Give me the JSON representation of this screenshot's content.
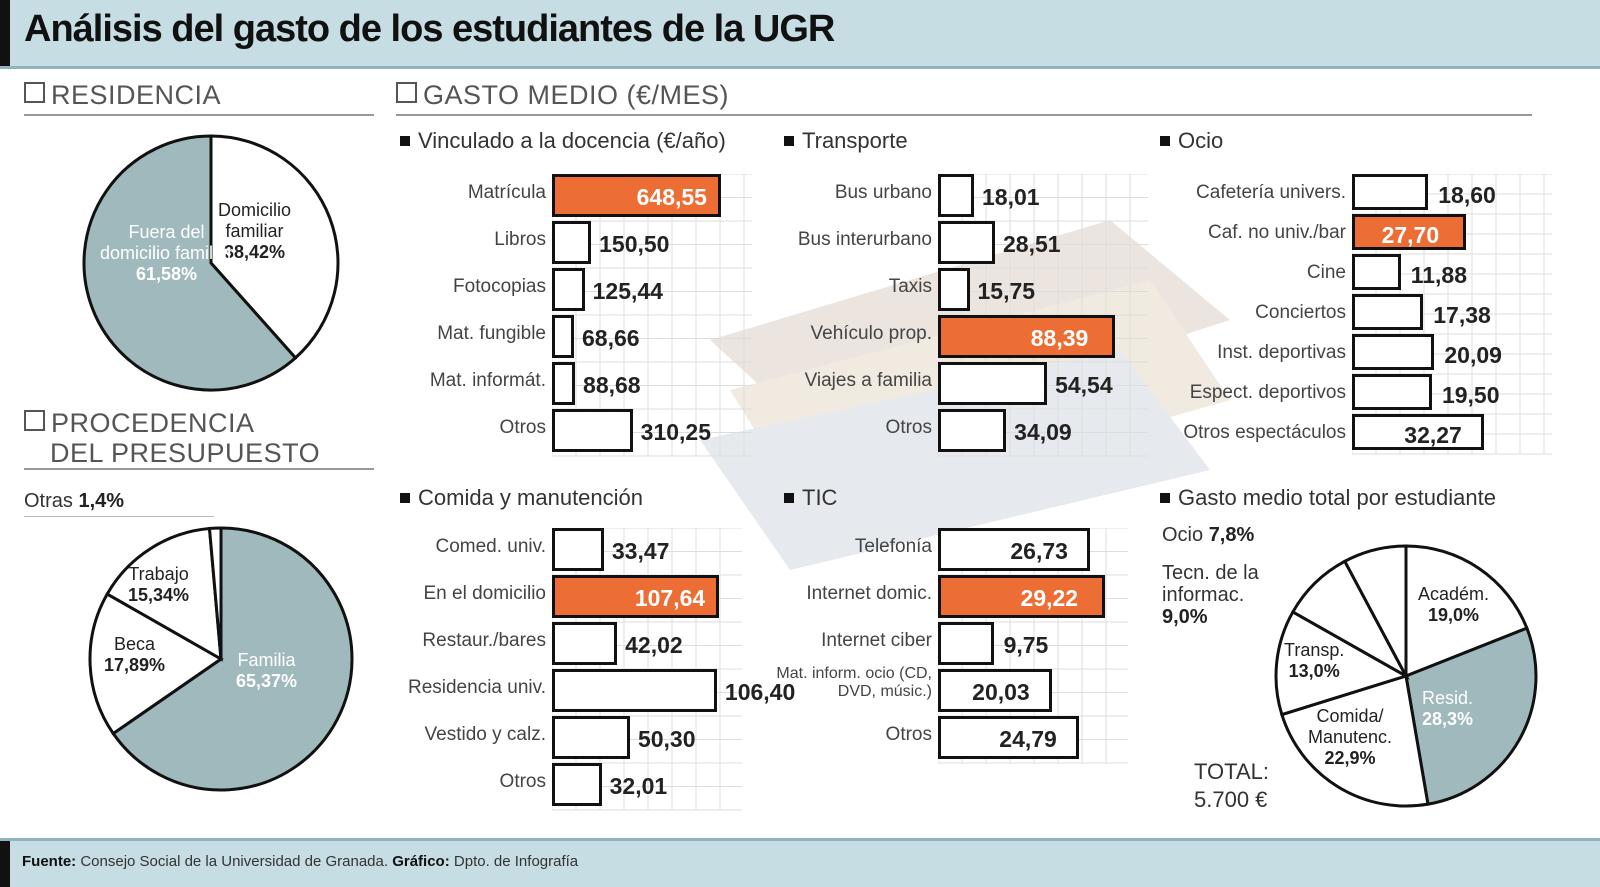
{
  "title": "Análisis del gasto de los estudiantes de la UGR",
  "sections": {
    "residencia": "RESIDENCIA",
    "procedencia_1": "PROCEDENCIA",
    "procedencia_2": "DEL PRESUPUESTO",
    "gasto_medio": "GASTO MEDIO (€/MES)"
  },
  "residencia_pie": {
    "slices": [
      {
        "label1": "Domicilio",
        "label2": "familiar",
        "value_text": "38,42%",
        "value": 38.42,
        "color": "#ffffff"
      },
      {
        "label1": "Fuera del",
        "label2": "domicilio familiar",
        "value_text": "61,58%",
        "value": 61.58,
        "color": "#9fb9bc"
      }
    ]
  },
  "procedencia_pie": {
    "otras_label": "Otras",
    "otras_value": "1,4%",
    "slices": [
      {
        "label1": "Familia",
        "value_text": "65,37%",
        "value": 65.37,
        "color": "#9fb9bc"
      },
      {
        "label1": "Beca",
        "value_text": "17,89%",
        "value": 17.89,
        "color": "#ffffff"
      },
      {
        "label1": "Trabajo",
        "value_text": "15,34%",
        "value": 15.34,
        "color": "#ffffff"
      },
      {
        "label1": "Otras",
        "value_text": "1,4%",
        "value": 1.4,
        "color": "#ffffff"
      }
    ]
  },
  "chart_data": [
    {
      "type": "bar",
      "title": "Vinculado a la docencia (€/año)",
      "categories": [
        "Matrícula",
        "Libros",
        "Fotocopias",
        "Mat. fungible",
        "Mat. informát.",
        "Otros"
      ],
      "values": [
        648.55,
        150.5,
        125.44,
        68.66,
        88.68,
        310.25
      ],
      "value_labels": [
        "648,55",
        "150,50",
        "125,44",
        "68,66",
        "88,68",
        "310,25"
      ],
      "highlight": [
        0
      ]
    },
    {
      "type": "bar",
      "title": "Transporte",
      "categories": [
        "Bus urbano",
        "Bus interurbano",
        "Taxis",
        "Vehículo prop.",
        "Viajes a familia",
        "Otros"
      ],
      "values": [
        18.01,
        28.51,
        15.75,
        88.39,
        54.54,
        34.09
      ],
      "value_labels": [
        "18,01",
        "28,51",
        "15,75",
        "88,39",
        "54,54",
        "34,09"
      ],
      "highlight": [
        3
      ]
    },
    {
      "type": "bar",
      "title": "Ocio",
      "categories": [
        "Cafetería univers.",
        "Caf. no univ./bar",
        "Cine",
        "Conciertos",
        "Inst. deportivas",
        "Espect. deportivos",
        "Otros espectáculos"
      ],
      "values": [
        18.6,
        27.7,
        11.88,
        17.38,
        20.09,
        19.5,
        32.27
      ],
      "value_labels": [
        "18,60",
        "27,70",
        "11,88",
        "17,38",
        "20,09",
        "19,50",
        "32,27"
      ],
      "highlight": [
        1
      ]
    },
    {
      "type": "bar",
      "title": "Comida y manutención",
      "categories": [
        "Comed. univ.",
        "En el domicilio",
        "Restaur./bares",
        "Residencia univ.",
        "Vestido y calz.",
        "Otros"
      ],
      "values": [
        33.47,
        107.64,
        42.02,
        106.4,
        50.3,
        32.01
      ],
      "value_labels": [
        "33,47",
        "107,64",
        "42,02",
        "106,40",
        "50,30",
        "32,01"
      ],
      "highlight": [
        1
      ]
    },
    {
      "type": "bar",
      "title": "TIC",
      "categories": [
        "Telefonía",
        "Internet domic.",
        "Internet ciber",
        "Mat. inform. ocio (CD, DVD, músic.)",
        "Otros"
      ],
      "values": [
        26.73,
        29.22,
        9.75,
        20.03,
        24.79
      ],
      "value_labels": [
        "26,73",
        "29,22",
        "9,75",
        "20,03",
        "24,79"
      ],
      "highlight": [
        1
      ]
    },
    {
      "type": "pie",
      "title": "Gasto medio total por estudiante",
      "categories": [
        "Ocio",
        "Tecn. de la informac.",
        "Académ.",
        "Resid.",
        "Comida/ Manutenc.",
        "Transp."
      ],
      "values": [
        7.8,
        9.0,
        19.0,
        28.3,
        22.9,
        13.0
      ],
      "value_labels": [
        "7,8%",
        "9,0%",
        "19,0%",
        "28,3%",
        "22,9%",
        "13,0%"
      ],
      "total_label": "TOTAL:",
      "total_value": "5.700 €"
    }
  ],
  "pie_total_labels": {
    "ocio": "Ocio",
    "ocio_val": "7,8%",
    "tecn1": "Tecn. de la",
    "tecn2": "informac.",
    "tecn_val": "9,0%",
    "acad": "Académ.",
    "acad_val": "19,0%",
    "resid": "Resid.",
    "resid_val": "28,3%",
    "comida1": "Comida/",
    "comida2": "Manutenc.",
    "comida_val": "22,9%",
    "transp": "Transp.",
    "transp_val": "13,0%"
  },
  "footer": {
    "fuente_label": "Fuente:",
    "fuente": "Consejo Social de la Universidad de Granada.",
    "grafico_label": "Gráfico:",
    "grafico": "Dpto. de Infografía"
  },
  "colors": {
    "highlight": "#ec6e35",
    "pie_fill": "#9fb9bc",
    "header_bg": "#c5dde3"
  }
}
